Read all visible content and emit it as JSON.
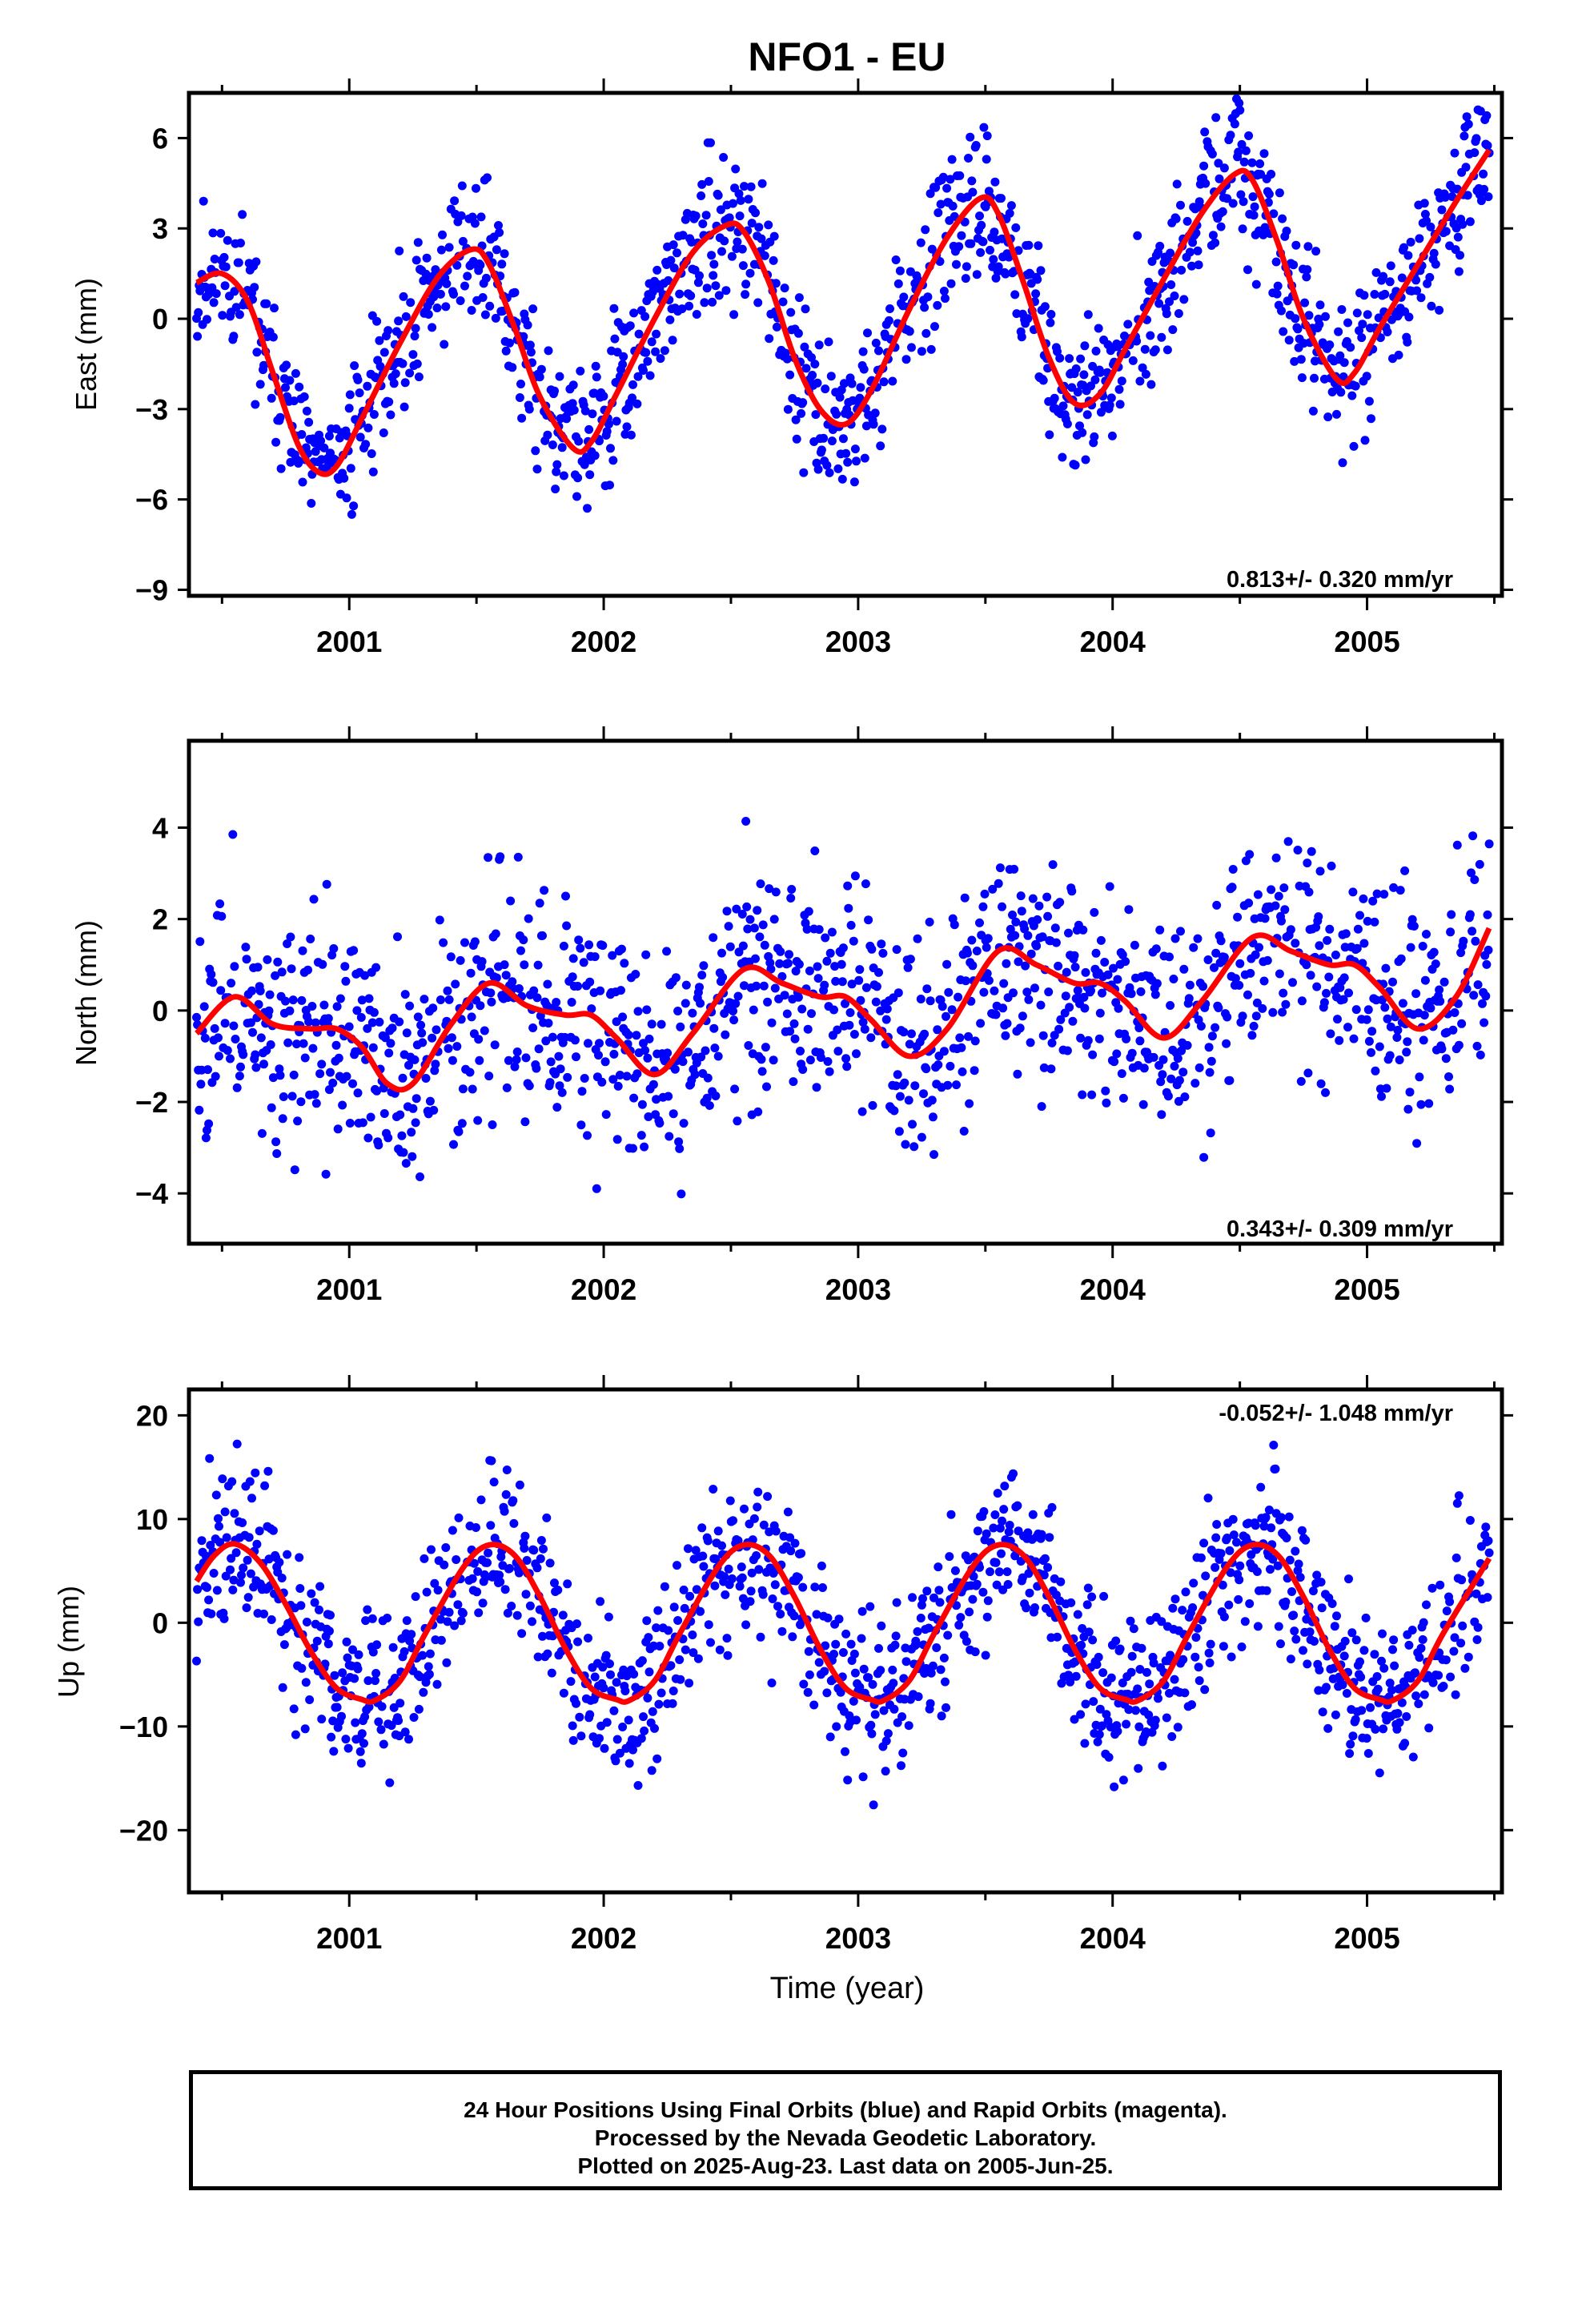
{
  "title": "NFO1 - EU",
  "colors": {
    "points": "#0000ff",
    "fit": "#ff0000",
    "frame": "#000000"
  },
  "footer": {
    "line1": "24 Hour Positions Using Final Orbits (blue) and Rapid Orbits (magenta).",
    "line2": "Processed by the Nevada Geodetic Laboratory.",
    "line3": "Plotted on 2025-Aug-23. Last data on 2005-Jun-25."
  },
  "chart_data": [
    {
      "type": "scatter",
      "title": "NFO1 - EU",
      "ylabel": "East (mm)",
      "xlabel": "",
      "xlim": [
        2000.37,
        2005.53
      ],
      "ylim": [
        -9.2,
        7.5
      ],
      "yticks": [
        6,
        3,
        0,
        -3,
        -6,
        -9
      ],
      "ytick_labels": [
        "6",
        "3",
        "0",
        "−3",
        "−6",
        "−9"
      ],
      "xticks": [
        2001,
        2002,
        2003,
        2004,
        2005
      ],
      "xtick_labels": [
        "2001",
        "2002",
        "2003",
        "2004",
        "2005"
      ],
      "annotation": "0.813+/- 0.320 mm/yr",
      "annotation_position": "bottom-right",
      "series": [
        {
          "kind": "points",
          "noise": 1.2,
          "seed": 11,
          "x_range": [
            2000.4,
            2005.48
          ]
        },
        {
          "kind": "fit",
          "x": [
            2000.4,
            2000.5,
            2000.6,
            2000.7,
            2000.8,
            2000.88,
            2000.95,
            2001.05,
            2001.2,
            2001.35,
            2001.48,
            2001.55,
            2001.65,
            2001.75,
            2001.88,
            2001.95,
            2002.05,
            2002.2,
            2002.35,
            2002.48,
            2002.55,
            2002.65,
            2002.75,
            2002.85,
            2002.95,
            2003.05,
            2003.2,
            2003.35,
            2003.48,
            2003.55,
            2003.65,
            2003.75,
            2003.85,
            2003.95,
            2004.05,
            2004.2,
            2004.35,
            2004.48,
            2004.55,
            2004.65,
            2004.75,
            2004.88,
            2004.95,
            2005.05,
            2005.2,
            2005.35,
            2005.48
          ],
          "y": [
            1.2,
            1.5,
            0.6,
            -1.8,
            -4.2,
            -5.1,
            -4.9,
            -3.3,
            -0.8,
            1.4,
            2.3,
            1.8,
            -0.3,
            -2.6,
            -4.3,
            -4.1,
            -2.5,
            0.0,
            2.2,
            3.1,
            2.9,
            1.2,
            -1.3,
            -3.0,
            -3.5,
            -2.4,
            0.3,
            2.7,
            4.0,
            3.5,
            1.2,
            -1.3,
            -2.8,
            -2.5,
            -1.0,
            1.3,
            3.5,
            4.8,
            4.6,
            2.5,
            0.0,
            -2.0,
            -1.8,
            -0.3,
            1.8,
            3.9,
            5.6
          ]
        }
      ]
    },
    {
      "type": "scatter",
      "ylabel": "North (mm)",
      "xlabel": "",
      "xlim": [
        2000.37,
        2005.53
      ],
      "ylim": [
        -5.1,
        5.9
      ],
      "yticks": [
        4,
        2,
        0,
        -2,
        -4
      ],
      "ytick_labels": [
        "4",
        "2",
        "0",
        "−2",
        "−4"
      ],
      "xticks": [
        2001,
        2002,
        2003,
        2004,
        2005
      ],
      "xtick_labels": [
        "2001",
        "2002",
        "2003",
        "2004",
        "2005"
      ],
      "annotation": "0.343+/- 0.309 mm/yr",
      "annotation_position": "bottom-right",
      "series": [
        {
          "kind": "points",
          "noise": 1.25,
          "seed": 23,
          "x_range": [
            2000.4,
            2005.48
          ]
        },
        {
          "kind": "fit",
          "x": [
            2000.4,
            2000.55,
            2000.7,
            2000.85,
            2000.95,
            2001.05,
            2001.15,
            2001.25,
            2001.4,
            2001.55,
            2001.7,
            2001.85,
            2001.95,
            2002.05,
            2002.2,
            2002.35,
            2002.55,
            2002.7,
            2002.85,
            2002.95,
            2003.05,
            2003.2,
            2003.35,
            2003.55,
            2003.7,
            2003.85,
            2003.95,
            2004.05,
            2004.2,
            2004.35,
            2004.55,
            2004.7,
            2004.85,
            2004.95,
            2005.05,
            2005.2,
            2005.35,
            2005.48
          ],
          "y": [
            -0.5,
            0.3,
            -0.3,
            -0.4,
            -0.4,
            -0.8,
            -1.6,
            -1.6,
            -0.3,
            0.6,
            0.1,
            -0.1,
            -0.1,
            -0.6,
            -1.4,
            -0.5,
            0.9,
            0.6,
            0.3,
            0.3,
            -0.2,
            -1.0,
            -0.4,
            1.3,
            1.0,
            0.6,
            0.6,
            0.2,
            -0.6,
            0.2,
            1.6,
            1.3,
            1.0,
            1.0,
            0.5,
            -0.4,
            0.3,
            1.8
          ]
        }
      ]
    },
    {
      "type": "scatter",
      "ylabel": "Up (mm)",
      "xlabel": "Time (year)",
      "xlim": [
        2000.37,
        2005.53
      ],
      "ylim": [
        -26,
        22.5
      ],
      "yticks": [
        20,
        10,
        0,
        -10,
        -20
      ],
      "ytick_labels": [
        "20",
        "10",
        "0",
        "−10",
        "−20"
      ],
      "xticks": [
        2001,
        2002,
        2003,
        2004,
        2005
      ],
      "xtick_labels": [
        "2001",
        "2002",
        "2003",
        "2004",
        "2005"
      ],
      "annotation": "-0.052+/- 1.048 mm/yr",
      "annotation_position": "top-right",
      "series": [
        {
          "kind": "points",
          "noise": 4.0,
          "seed": 37,
          "x_range": [
            2000.4,
            2005.48
          ]
        },
        {
          "kind": "fit",
          "x": [
            2000.4,
            2000.47,
            2000.55,
            2000.65,
            2000.75,
            2000.85,
            2000.95,
            2001.05,
            2001.1,
            2001.2,
            2001.3,
            2001.45,
            2001.55,
            2001.65,
            2001.75,
            2001.85,
            2001.95,
            2002.05,
            2002.1,
            2002.2,
            2002.3,
            2002.45,
            2002.55,
            2002.65,
            2002.75,
            2002.85,
            2002.95,
            2003.05,
            2003.1,
            2003.2,
            2003.3,
            2003.45,
            2003.55,
            2003.65,
            2003.75,
            2003.85,
            2003.95,
            2004.05,
            2004.1,
            2004.2,
            2004.3,
            2004.45,
            2004.55,
            2004.65,
            2004.75,
            2004.85,
            2004.95,
            2005.05,
            2005.1,
            2005.2,
            2005.3,
            2005.48
          ],
          "y": [
            4.0,
            6.5,
            7.6,
            5.8,
            1.8,
            -2.8,
            -6.3,
            -7.4,
            -7.5,
            -5.6,
            -1.0,
            5.4,
            7.5,
            6.5,
            2.5,
            -2.5,
            -6.3,
            -7.4,
            -7.5,
            -5.6,
            -1.0,
            5.4,
            7.5,
            6.5,
            2.5,
            -2.5,
            -6.3,
            -7.4,
            -7.5,
            -5.6,
            -1.0,
            5.4,
            7.5,
            6.5,
            2.5,
            -2.5,
            -6.3,
            -7.4,
            -7.5,
            -5.6,
            -1.0,
            5.4,
            7.5,
            6.5,
            2.5,
            -2.5,
            -6.3,
            -7.4,
            -7.5,
            -5.6,
            -1.0,
            6.2
          ]
        }
      ]
    }
  ]
}
